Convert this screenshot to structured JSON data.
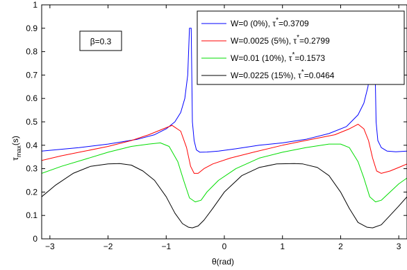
{
  "chart_data": {
    "type": "line",
    "xlabel": "θ(rad)",
    "ylabel_main": "τ",
    "ylabel_sub": "max",
    "ylabel_unit": "(s)",
    "xlim": [
      -3.1416,
      3.1416
    ],
    "ylim": [
      0,
      1
    ],
    "xticks": [
      -3,
      -2,
      -1,
      0,
      1,
      2,
      3
    ],
    "xtick_labels": [
      "−3",
      "−2",
      "−1",
      "0",
      "1",
      "2",
      "3"
    ],
    "yticks": [
      0,
      0.1,
      0.2,
      0.3,
      0.4,
      0.5,
      0.6,
      0.7,
      0.8,
      0.9,
      1
    ],
    "ytick_labels": [
      "0",
      "0.1",
      "0.2",
      "0.3",
      "0.4",
      "0.5",
      "0.6",
      "0.7",
      "0.8",
      "0.9",
      "1"
    ],
    "grid": false,
    "legend_placement": "top-right",
    "annotation": "β=0.3",
    "series": [
      {
        "name": "W=0 (0%), τ*=0.3709",
        "legend_main": "W=0 (0%), τ",
        "legend_value": "=0.3709",
        "color": "#0000ff",
        "x": [
          -3.1416,
          -2.5,
          -2.0,
          -1.5,
          -1.2,
          -1.0,
          -0.85,
          -0.75,
          -0.68,
          -0.63,
          -0.6,
          -0.57,
          -0.55,
          -0.52,
          -0.48,
          -0.42,
          -0.3,
          -0.1,
          0.2,
          0.6,
          1.0,
          1.4,
          1.8,
          2.1,
          2.3,
          2.4,
          2.47,
          2.52,
          2.55,
          2.58,
          2.61,
          2.64,
          2.7,
          2.8,
          2.95,
          3.1416
        ],
        "y": [
          0.375,
          0.39,
          0.405,
          0.425,
          0.445,
          0.47,
          0.5,
          0.54,
          0.6,
          0.7,
          0.9,
          0.9,
          0.5,
          0.42,
          0.38,
          0.37,
          0.371,
          0.375,
          0.385,
          0.4,
          0.41,
          0.425,
          0.45,
          0.48,
          0.53,
          0.58,
          0.65,
          0.75,
          0.9,
          0.9,
          0.5,
          0.42,
          0.39,
          0.375,
          0.372,
          0.375
        ]
      },
      {
        "name": "W=0.0025 (5%), τ*=0.2799",
        "legend_main": "W=0.0025 (5%), τ",
        "legend_value": "=0.2799",
        "color": "#ff0000",
        "x": [
          -3.1416,
          -2.8,
          -2.4,
          -2.0,
          -1.6,
          -1.3,
          -1.05,
          -0.9,
          -0.75,
          -0.65,
          -0.58,
          -0.52,
          -0.45,
          -0.35,
          -0.2,
          0.1,
          0.5,
          1.0,
          1.5,
          1.9,
          2.15,
          2.3,
          2.4,
          2.48,
          2.55,
          2.62,
          2.7,
          2.85,
          3.0,
          3.1416
        ],
        "y": [
          0.335,
          0.355,
          0.375,
          0.395,
          0.42,
          0.445,
          0.47,
          0.485,
          0.46,
          0.39,
          0.31,
          0.28,
          0.28,
          0.3,
          0.32,
          0.345,
          0.37,
          0.4,
          0.425,
          0.445,
          0.47,
          0.49,
          0.47,
          0.42,
          0.345,
          0.29,
          0.28,
          0.29,
          0.305,
          0.32
        ]
      },
      {
        "name": "W=0.01 (10%), τ*=0.1573",
        "legend_main": "W=0.01 (10%), τ",
        "legend_value": "=0.1573",
        "color": "#00dd00",
        "x": [
          -3.1416,
          -2.8,
          -2.4,
          -2.0,
          -1.6,
          -1.3,
          -1.1,
          -0.95,
          -0.8,
          -0.7,
          -0.6,
          -0.5,
          -0.4,
          -0.3,
          -0.1,
          0.2,
          0.6,
          1.0,
          1.4,
          1.8,
          2.0,
          2.15,
          2.3,
          2.4,
          2.5,
          2.6,
          2.7,
          2.85,
          3.0,
          3.1416
        ],
        "y": [
          0.28,
          0.31,
          0.34,
          0.37,
          0.395,
          0.405,
          0.41,
          0.395,
          0.33,
          0.25,
          0.175,
          0.158,
          0.165,
          0.2,
          0.25,
          0.3,
          0.345,
          0.37,
          0.39,
          0.405,
          0.405,
          0.39,
          0.33,
          0.26,
          0.18,
          0.158,
          0.165,
          0.2,
          0.235,
          0.26
        ]
      },
      {
        "name": "W=0.0225 (15%), τ*=0.0464",
        "legend_main": "W=0.0225 (15%), τ",
        "legend_value": "=0.0464",
        "color": "#000000",
        "x": [
          -3.1416,
          -2.9,
          -2.6,
          -2.3,
          -2.0,
          -1.8,
          -1.6,
          -1.4,
          -1.2,
          -1.0,
          -0.85,
          -0.72,
          -0.62,
          -0.55,
          -0.45,
          -0.35,
          -0.2,
          0.0,
          0.3,
          0.6,
          0.9,
          1.2,
          1.35,
          1.6,
          1.8,
          2.0,
          2.15,
          2.3,
          2.45,
          2.55,
          2.7,
          2.85,
          3.0,
          3.1416
        ],
        "y": [
          0.18,
          0.23,
          0.28,
          0.31,
          0.32,
          0.322,
          0.315,
          0.29,
          0.25,
          0.18,
          0.11,
          0.065,
          0.05,
          0.047,
          0.055,
          0.08,
          0.13,
          0.2,
          0.27,
          0.305,
          0.32,
          0.322,
          0.32,
          0.305,
          0.27,
          0.2,
          0.13,
          0.07,
          0.05,
          0.047,
          0.06,
          0.1,
          0.14,
          0.18
        ]
      }
    ]
  }
}
